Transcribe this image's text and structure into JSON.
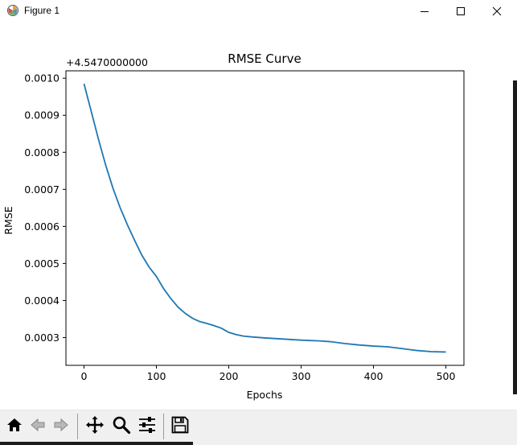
{
  "window": {
    "title": "Figure 1",
    "minimize_icon": "minimize-icon",
    "maximize_icon": "maximize-icon",
    "close_icon": "close-icon",
    "app_icon": "matplotlib-icon"
  },
  "toolbar": {
    "buttons": [
      {
        "name": "home",
        "icon": "home-icon"
      },
      {
        "name": "back",
        "icon": "back-arrow-icon"
      },
      {
        "name": "forward",
        "icon": "forward-arrow-icon"
      },
      {
        "name": "pan",
        "icon": "move-icon"
      },
      {
        "name": "zoom",
        "icon": "magnifier-icon"
      },
      {
        "name": "configure-subplots",
        "icon": "sliders-icon"
      },
      {
        "name": "save",
        "icon": "floppy-icon"
      }
    ]
  },
  "chart_data": {
    "type": "line",
    "title": "RMSE Curve",
    "xlabel": "Epochs",
    "ylabel": "RMSE",
    "offset_label": "+4.5470000000",
    "xlim": [
      -25,
      525
    ],
    "ylim": [
      0.000225,
      0.00102
    ],
    "xticks": [
      0,
      100,
      200,
      300,
      400,
      500
    ],
    "xtick_labels": [
      "0",
      "100",
      "200",
      "300",
      "400",
      "500"
    ],
    "yticks": [
      0.0003,
      0.0004,
      0.0005,
      0.0006,
      0.0007,
      0.0008,
      0.0009,
      0.001
    ],
    "ytick_labels": [
      "0.0003",
      "0.0004",
      "0.0005",
      "0.0006",
      "0.0007",
      "0.0008",
      "0.0009",
      "0.0010"
    ],
    "grid": false,
    "line_color": "#1f77b4",
    "series": [
      {
        "x": [
          0,
          10,
          20,
          30,
          40,
          50,
          60,
          70,
          80,
          90,
          100,
          110,
          120,
          130,
          140,
          150,
          160,
          170,
          180,
          190,
          200,
          210,
          220,
          230,
          250,
          275,
          300,
          325,
          340,
          360,
          380,
          400,
          420,
          440,
          460,
          480,
          500
        ],
        "y": [
          0.000985,
          0.00091,
          0.000835,
          0.000765,
          0.000703,
          0.00065,
          0.000604,
          0.000562,
          0.000522,
          0.00049,
          0.000465,
          0.000432,
          0.000405,
          0.000382,
          0.000365,
          0.000352,
          0.000343,
          0.000338,
          0.000332,
          0.000325,
          0.000314,
          0.000308,
          0.000304,
          0.000302,
          0.000299,
          0.000296,
          0.000293,
          0.000291,
          0.000289,
          0.000284,
          0.00028,
          0.000277,
          0.000275,
          0.00027,
          0.000265,
          0.000262,
          0.000261
        ]
      }
    ]
  }
}
